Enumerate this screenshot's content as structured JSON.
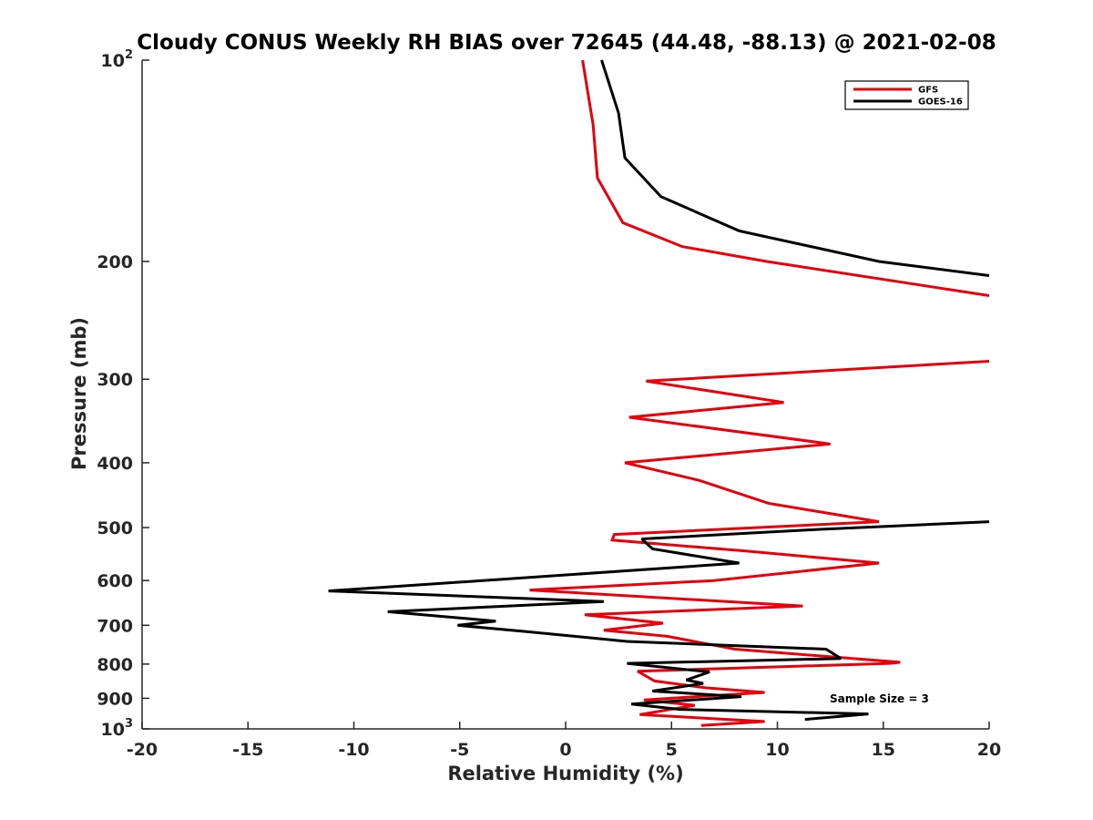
{
  "chart_data": {
    "type": "line",
    "title": "Cloudy CONUS Weekly RH BIAS over 72645 (44.48, -88.13) @ 2021-02-08",
    "xlabel": "Relative Humidity (%)",
    "ylabel": "Pressure (mb)",
    "xlim": [
      -20,
      20
    ],
    "ylim": [
      100,
      1000
    ],
    "y_scale": "log",
    "y_reversed": true,
    "grid": false,
    "legend_position": "top-right",
    "x_ticks": [
      -20,
      -15,
      -10,
      -5,
      0,
      5,
      10,
      15,
      20
    ],
    "x_tick_labels": [
      "-20",
      "-15",
      "-10",
      "-5",
      "0",
      "5",
      "10",
      "15",
      "20"
    ],
    "y_ticks": [
      100,
      200,
      300,
      400,
      500,
      600,
      700,
      800,
      900,
      1000
    ],
    "y_tick_labels": [
      "",
      "200",
      "300",
      "400",
      "500",
      "600",
      "700",
      "800",
      "900",
      ""
    ],
    "y_tick_exponent_labels": {
      "100": {
        "base": "10",
        "exp": "2"
      },
      "1000": {
        "base": "10",
        "exp": "3"
      }
    },
    "annotation": "Sample Size = 3",
    "series": [
      {
        "name": "GFS",
        "color": "#e8000b",
        "segments": [
          [
            [
              0.8,
              100
            ],
            [
              1.3,
              125
            ],
            [
              1.5,
              150
            ],
            [
              2.7,
              175
            ],
            [
              5.5,
              190
            ],
            [
              9.5,
              200
            ],
            [
              20,
              225
            ]
          ],
          [
            [
              20,
              282
            ],
            [
              3.8,
              302
            ],
            [
              10.3,
              325
            ],
            [
              3.0,
              342
            ],
            [
              12.5,
              375
            ],
            [
              2.8,
              400
            ],
            [
              6.3,
              425
            ],
            [
              9.6,
              460
            ],
            [
              14.8,
              490
            ],
            [
              2.3,
              512
            ],
            [
              2.2,
              522
            ],
            [
              8.5,
              542
            ],
            [
              14.8,
              565
            ],
            [
              7.0,
              600
            ],
            [
              -1.7,
              620
            ],
            [
              11.2,
              655
            ],
            [
              0.9,
              675
            ],
            [
              4.6,
              695
            ],
            [
              1.8,
              712
            ],
            [
              4.8,
              727
            ],
            [
              8.0,
              760
            ],
            [
              15.8,
              795
            ],
            [
              15.3,
              798
            ],
            [
              3.4,
              820
            ],
            [
              4.2,
              848
            ],
            [
              6.6,
              868
            ],
            [
              9.4,
              882
            ],
            [
              3.7,
              905
            ],
            [
              6.1,
              922
            ],
            [
              3.5,
              952
            ],
            [
              9.4,
              975
            ],
            [
              6.4,
              988
            ]
          ]
        ]
      },
      {
        "name": "GOES-16",
        "color": "#000000",
        "segments": [
          [
            [
              1.7,
              100
            ],
            [
              2.5,
              120
            ],
            [
              2.8,
              140
            ],
            [
              4.5,
              160
            ],
            [
              8.2,
              180
            ],
            [
              14.8,
              200
            ],
            [
              20,
              210
            ]
          ],
          [
            [
              20,
              490
            ],
            [
              12.0,
              503
            ],
            [
              3.6,
              520
            ],
            [
              4.1,
              538
            ],
            [
              8.2,
              565
            ],
            [
              -3.2,
              598
            ],
            [
              -11.2,
              622
            ],
            [
              1.8,
              645
            ],
            [
              -8.4,
              668
            ],
            [
              -3.3,
              690
            ],
            [
              -5.1,
              700
            ],
            [
              -1.9,
              715
            ],
            [
              2.9,
              740
            ],
            [
              12.3,
              760
            ],
            [
              13.0,
              785
            ],
            [
              2.9,
              798
            ],
            [
              6.8,
              822
            ],
            [
              5.7,
              845
            ],
            [
              6.5,
              855
            ],
            [
              4.1,
              878
            ],
            [
              8.3,
              895
            ],
            [
              3.1,
              918
            ],
            [
              5.4,
              935
            ],
            [
              14.3,
              950
            ],
            [
              11.3,
              968
            ]
          ]
        ]
      }
    ]
  }
}
